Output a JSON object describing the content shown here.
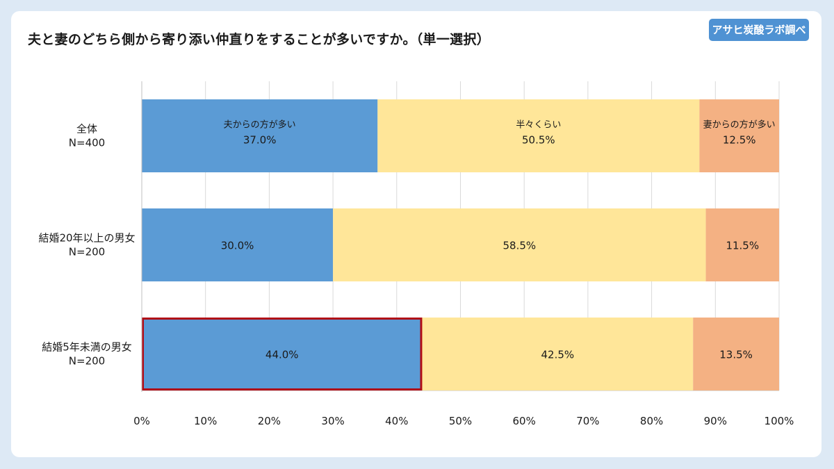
{
  "title": "夫と妻のどちら側から寄り添い仲直りをすることが多いですか。（単一選択）",
  "brand": "アサヒ炭酸ラボ調べ",
  "colors": {
    "background": "#dde9f5",
    "series1": "#5b9bd5",
    "series2": "#ffe699",
    "series3": "#f4b183",
    "highlight": "#b00d17",
    "brand": "#4f92d3"
  },
  "chart_data": {
    "type": "bar",
    "orientation": "horizontal-stacked",
    "categories": [
      {
        "line1": "全体",
        "line2": "N=400"
      },
      {
        "line1": "結婚20年以上の男女",
        "line2": "N=200"
      },
      {
        "line1": "結婚5年未満の男女",
        "line2": "N=200"
      }
    ],
    "series": [
      {
        "name": "夫からの方が多い",
        "values": [
          37.0,
          30.0,
          44.0
        ]
      },
      {
        "name": "半々くらい",
        "values": [
          50.5,
          58.5,
          42.5
        ]
      },
      {
        "name": "妻からの方が多い",
        "values": [
          12.5,
          11.5,
          13.5
        ]
      }
    ],
    "value_labels": [
      [
        "37.0%",
        "50.5%",
        "12.5%"
      ],
      [
        "30.0%",
        "58.5%",
        "11.5%"
      ],
      [
        "44.0%",
        "42.5%",
        "13.5%"
      ]
    ],
    "xlim": [
      0,
      100
    ],
    "xticks": [
      "0%",
      "10%",
      "20%",
      "30%",
      "40%",
      "50%",
      "60%",
      "70%",
      "80%",
      "90%",
      "100%"
    ],
    "grid": true,
    "highlight": {
      "category": 2,
      "series": 0
    },
    "series_names_shown_on_category": 0
  }
}
